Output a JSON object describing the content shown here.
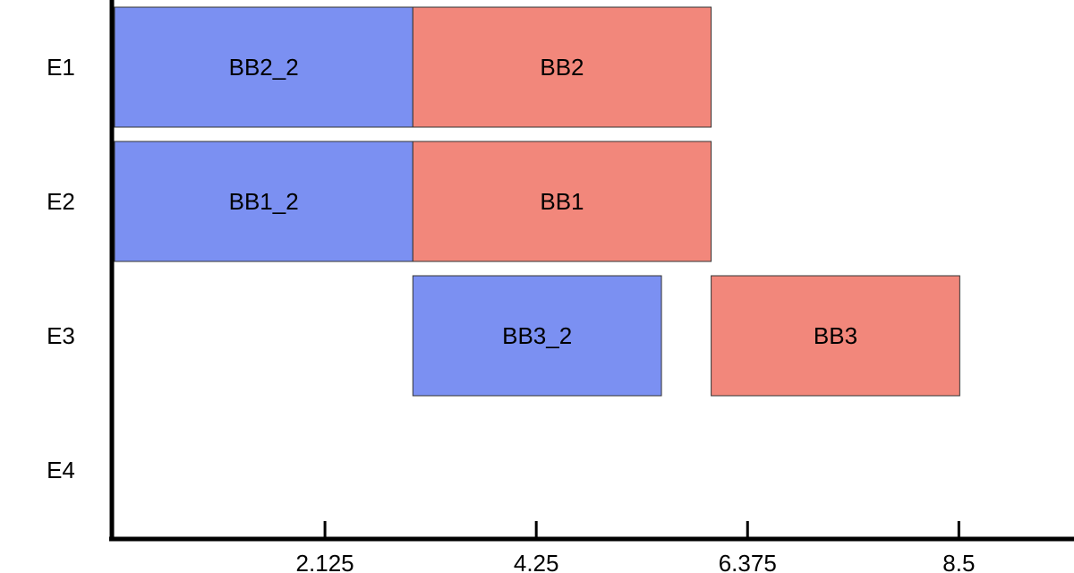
{
  "chart_data": {
    "type": "gantt",
    "title": "",
    "xlabel": "",
    "ylabel": "",
    "rows": [
      "E1",
      "E2",
      "E3",
      "E4"
    ],
    "x_ticks": [
      2.125,
      4.25,
      6.375,
      8.5
    ],
    "x_tick_labels": [
      "2.125",
      "4.25",
      "6.375",
      "8.5"
    ],
    "xlim": [
      0,
      9.5
    ],
    "grid": false,
    "legend": "none",
    "colors": {
      "blue": "#7b90f2",
      "red": "#f2877b"
    },
    "bars": [
      {
        "row": "E1",
        "label": "BB2_2",
        "start": 0,
        "end": 3,
        "color": "blue"
      },
      {
        "row": "E1",
        "label": "BB2",
        "start": 3,
        "end": 6,
        "color": "red"
      },
      {
        "row": "E2",
        "label": "BB1_2",
        "start": 0,
        "end": 3,
        "color": "blue"
      },
      {
        "row": "E2",
        "label": "BB1",
        "start": 3,
        "end": 6,
        "color": "red"
      },
      {
        "row": "E3",
        "label": "BB3_2",
        "start": 3,
        "end": 5.5,
        "color": "blue"
      },
      {
        "row": "E3",
        "label": "BB3",
        "start": 6,
        "end": 8.5,
        "color": "red"
      }
    ]
  }
}
